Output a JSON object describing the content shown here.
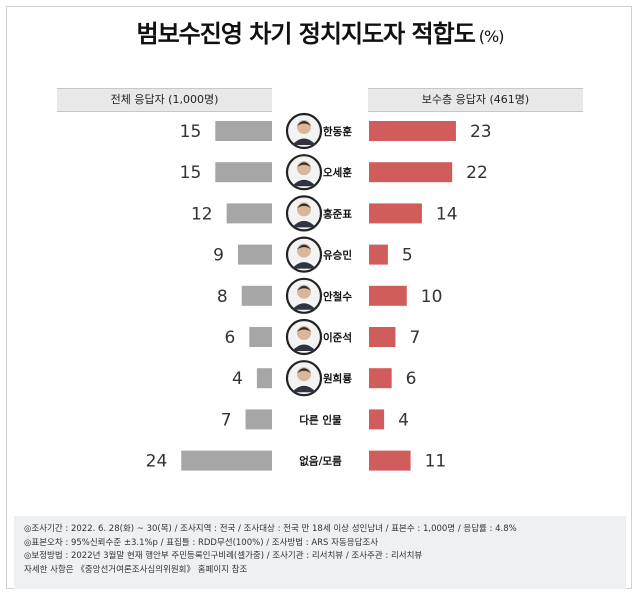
{
  "title": "범보수진영 차기 정치지도자 적합도",
  "title_unit": "(%)",
  "headers": {
    "left": "전체 응답자 (1,000명)",
    "right": "보수층 응답자 (461명)"
  },
  "colors": {
    "left_bar": "#a6a6a6",
    "right_bar": "#d05c5c",
    "portrait_ring": "#222222"
  },
  "chart_data": {
    "type": "bar",
    "orientation": "horizontal-butterfly",
    "categories": [
      "한동훈",
      "오세훈",
      "홍준표",
      "유승민",
      "안철수",
      "이준석",
      "원희룡",
      "다른 인물",
      "없음/모름"
    ],
    "series": [
      {
        "name": "전체 응답자 (1,000명)",
        "values": [
          15,
          15,
          12,
          9,
          8,
          6,
          4,
          7,
          24
        ]
      },
      {
        "name": "보수층 응답자 (461명)",
        "values": [
          23,
          22,
          14,
          5,
          10,
          7,
          6,
          4,
          11
        ]
      }
    ],
    "portraits": [
      true,
      true,
      true,
      true,
      true,
      true,
      true,
      false,
      false
    ],
    "unit": "%"
  },
  "notes": [
    "◎조사기간 : 2022. 6. 28(화) ~ 30(목) / 조사지역 : 전국 / 조사대상 : 전국 만 18세 이상 성인남녀 / 표본수 : 1,000명 / 응답률 : 4.8%",
    "◎표본오차 : 95%신뢰수준 ±3.1%p / 표집틀 : RDD무선(100%) / 조사방법 : ARS 자동응답조사",
    "◎보정방법 : 2022년 3월말 현재 행안부 주민등록인구비례(셀가중) / 조사기관 : 리서치뷰 / 조사주관 : 리서치뷰",
    "자세한 사항은 《중앙선거여론조사심의위원회》 홈페이지 참조"
  ]
}
